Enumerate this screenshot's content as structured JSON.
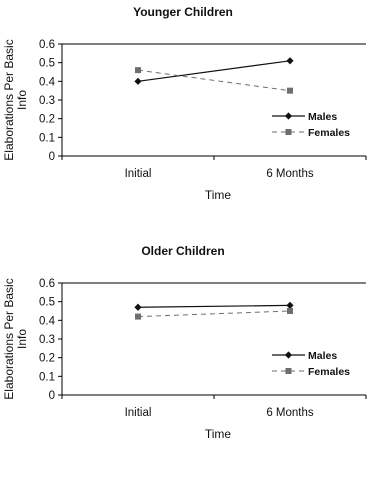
{
  "chart_data": [
    {
      "type": "line",
      "title": "Younger Children",
      "xlabel": "Time",
      "ylabel": "Elaborations Per Basic Info",
      "categories": [
        "Initial",
        "6 Months"
      ],
      "ylim": [
        0,
        0.6
      ],
      "yticks": [
        "0",
        "0.1",
        "0.2",
        "0.3",
        "0.4",
        "0.5",
        "0.6"
      ],
      "legend_position": "right",
      "series": [
        {
          "name": "Males",
          "values": [
            0.4,
            0.51
          ],
          "color": "#111111",
          "dash": "solid",
          "marker": "diamond"
        },
        {
          "name": "Females",
          "values": [
            0.46,
            0.35
          ],
          "color": "#6e6e6e",
          "dash": "dashed",
          "marker": "square"
        }
      ]
    },
    {
      "type": "line",
      "title": "Older Children",
      "xlabel": "Time",
      "ylabel": "Elaborations Per Basic Info",
      "categories": [
        "Initial",
        "6 Months"
      ],
      "ylim": [
        0,
        0.6
      ],
      "yticks": [
        "0",
        "0.1",
        "0.2",
        "0.3",
        "0.4",
        "0.5",
        "0.6"
      ],
      "legend_position": "right",
      "series": [
        {
          "name": "Males",
          "values": [
            0.47,
            0.48
          ],
          "color": "#111111",
          "dash": "solid",
          "marker": "diamond"
        },
        {
          "name": "Females",
          "values": [
            0.42,
            0.45
          ],
          "color": "#6e6e6e",
          "dash": "dashed",
          "marker": "square"
        }
      ]
    }
  ]
}
